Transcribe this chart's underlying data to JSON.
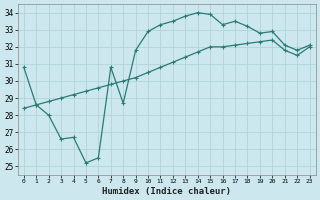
{
  "xlabel": "Humidex (Indice chaleur)",
  "background_color": "#cce8ee",
  "grid_color": "#b0d4da",
  "line_color": "#2a7a75",
  "xlim": [
    -0.5,
    23.5
  ],
  "ylim": [
    24.5,
    34.5
  ],
  "yticks": [
    25,
    26,
    27,
    28,
    29,
    30,
    31,
    32,
    33,
    34
  ],
  "xticks": [
    0,
    1,
    2,
    3,
    4,
    5,
    6,
    7,
    8,
    9,
    10,
    11,
    12,
    13,
    14,
    15,
    16,
    17,
    18,
    19,
    20,
    21,
    22,
    23
  ],
  "curve1_x": [
    0,
    1,
    2,
    3,
    4,
    5,
    6,
    7,
    8,
    9,
    10,
    11,
    12,
    13,
    14,
    15,
    16,
    17,
    18,
    19,
    20,
    21,
    22,
    23
  ],
  "curve1_y": [
    30.8,
    28.6,
    28.0,
    26.6,
    26.7,
    25.2,
    25.5,
    30.8,
    28.7,
    31.8,
    32.9,
    33.3,
    33.5,
    33.8,
    34.0,
    33.9,
    33.3,
    33.5,
    33.2,
    32.8,
    32.9,
    32.1,
    31.8,
    32.1
  ],
  "curve2_x": [
    0,
    1,
    2,
    3,
    4,
    5,
    6,
    7,
    8,
    9,
    10,
    11,
    12,
    13,
    14,
    15,
    16,
    17,
    18,
    19,
    20,
    21,
    22,
    23
  ],
  "curve2_y": [
    28.4,
    28.6,
    28.8,
    29.0,
    29.2,
    29.4,
    29.6,
    29.8,
    30.0,
    30.2,
    30.5,
    30.8,
    31.1,
    31.4,
    31.7,
    32.0,
    32.0,
    32.1,
    32.2,
    32.3,
    32.4,
    31.8,
    31.5,
    32.0
  ]
}
